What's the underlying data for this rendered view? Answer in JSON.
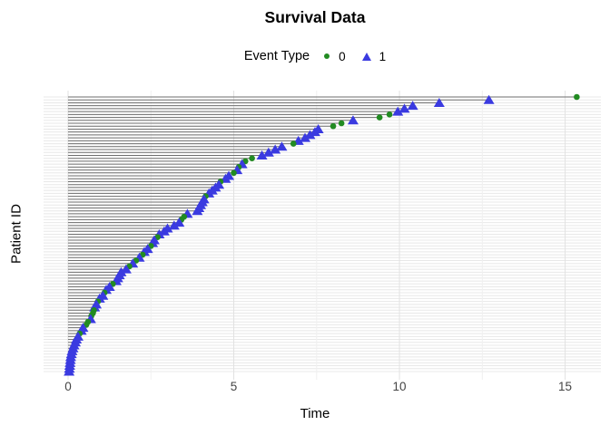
{
  "title": "Survival Data",
  "legend": {
    "title": "Event Type",
    "items": [
      {
        "label": "0",
        "marker": "circle-icon"
      },
      {
        "label": "1",
        "marker": "triangle-icon"
      }
    ]
  },
  "colors": {
    "event0": "#228B22",
    "event1": "#3A3AE0",
    "segment": "#6E6E6E",
    "grid_major": "#E2E2E2",
    "grid_minor": "#F0F0F0",
    "row_line": "#E8E8E8",
    "tick_label": "#444444"
  },
  "chart_data": {
    "type": "scatter",
    "subtype": "lollipop-event-plot",
    "title": "Survival Data",
    "xlabel": "Time",
    "ylabel": "Patient ID",
    "x_ticks": [
      0,
      5,
      10,
      15
    ],
    "x_minor_ticks": [
      2.5,
      7.5,
      12.5
    ],
    "xlim": [
      -0.74,
      16.08
    ],
    "y_tick_labels": [],
    "grid": true,
    "legend_position": "top",
    "series": [
      {
        "name": "0",
        "marker": "circle",
        "color": "#228B22"
      },
      {
        "name": "1",
        "marker": "triangle",
        "color": "#3A3AE0"
      }
    ],
    "patients_format": [
      "time",
      "event_type"
    ],
    "patients_order": "top_row_to_bottom_row",
    "patients": [
      [
        15.35,
        0
      ],
      [
        12.7,
        1
      ],
      [
        11.2,
        1
      ],
      [
        10.4,
        1
      ],
      [
        10.15,
        1
      ],
      [
        9.95,
        1
      ],
      [
        9.7,
        0
      ],
      [
        9.4,
        0
      ],
      [
        8.6,
        1
      ],
      [
        8.25,
        0
      ],
      [
        8.0,
        0
      ],
      [
        7.55,
        1
      ],
      [
        7.45,
        1
      ],
      [
        7.3,
        1
      ],
      [
        7.15,
        1
      ],
      [
        6.95,
        1
      ],
      [
        6.8,
        0
      ],
      [
        6.45,
        1
      ],
      [
        6.25,
        1
      ],
      [
        6.05,
        1
      ],
      [
        5.85,
        1
      ],
      [
        5.55,
        0
      ],
      [
        5.35,
        0
      ],
      [
        5.25,
        1
      ],
      [
        5.15,
        0
      ],
      [
        5.1,
        1
      ],
      [
        5.0,
        0
      ],
      [
        4.85,
        1
      ],
      [
        4.75,
        1
      ],
      [
        4.6,
        0
      ],
      [
        4.55,
        1
      ],
      [
        4.45,
        1
      ],
      [
        4.35,
        1
      ],
      [
        4.25,
        1
      ],
      [
        4.15,
        0
      ],
      [
        4.1,
        1
      ],
      [
        4.05,
        1
      ],
      [
        4.0,
        1
      ],
      [
        3.95,
        1
      ],
      [
        3.9,
        1
      ],
      [
        3.6,
        1
      ],
      [
        3.5,
        0
      ],
      [
        3.42,
        0
      ],
      [
        3.35,
        1
      ],
      [
        3.2,
        1
      ],
      [
        3.0,
        1
      ],
      [
        2.9,
        1
      ],
      [
        2.75,
        1
      ],
      [
        2.7,
        0
      ],
      [
        2.6,
        1
      ],
      [
        2.55,
        1
      ],
      [
        2.5,
        0
      ],
      [
        2.4,
        1
      ],
      [
        2.3,
        1
      ],
      [
        2.25,
        0
      ],
      [
        2.15,
        1
      ],
      [
        2.05,
        0
      ],
      [
        1.95,
        1
      ],
      [
        1.85,
        0
      ],
      [
        1.75,
        1
      ],
      [
        1.6,
        1
      ],
      [
        1.55,
        1
      ],
      [
        1.5,
        1
      ],
      [
        1.45,
        1
      ],
      [
        1.35,
        0
      ],
      [
        1.25,
        1
      ],
      [
        1.15,
        1
      ],
      [
        1.1,
        0
      ],
      [
        1.05,
        1
      ],
      [
        0.95,
        1
      ],
      [
        0.9,
        0
      ],
      [
        0.85,
        1
      ],
      [
        0.8,
        1
      ],
      [
        0.78,
        0
      ],
      [
        0.75,
        0
      ],
      [
        0.7,
        0
      ],
      [
        0.68,
        1
      ],
      [
        0.6,
        0
      ],
      [
        0.55,
        0
      ],
      [
        0.45,
        1
      ],
      [
        0.4,
        1
      ],
      [
        0.35,
        0
      ],
      [
        0.3,
        1
      ],
      [
        0.25,
        1
      ],
      [
        0.22,
        1
      ],
      [
        0.18,
        1
      ],
      [
        0.15,
        1
      ],
      [
        0.12,
        1
      ],
      [
        0.1,
        1
      ],
      [
        0.08,
        1
      ],
      [
        0.07,
        1
      ],
      [
        0.06,
        1
      ],
      [
        0.05,
        1
      ],
      [
        0.04,
        1
      ],
      [
        0.03,
        1
      ]
    ]
  }
}
